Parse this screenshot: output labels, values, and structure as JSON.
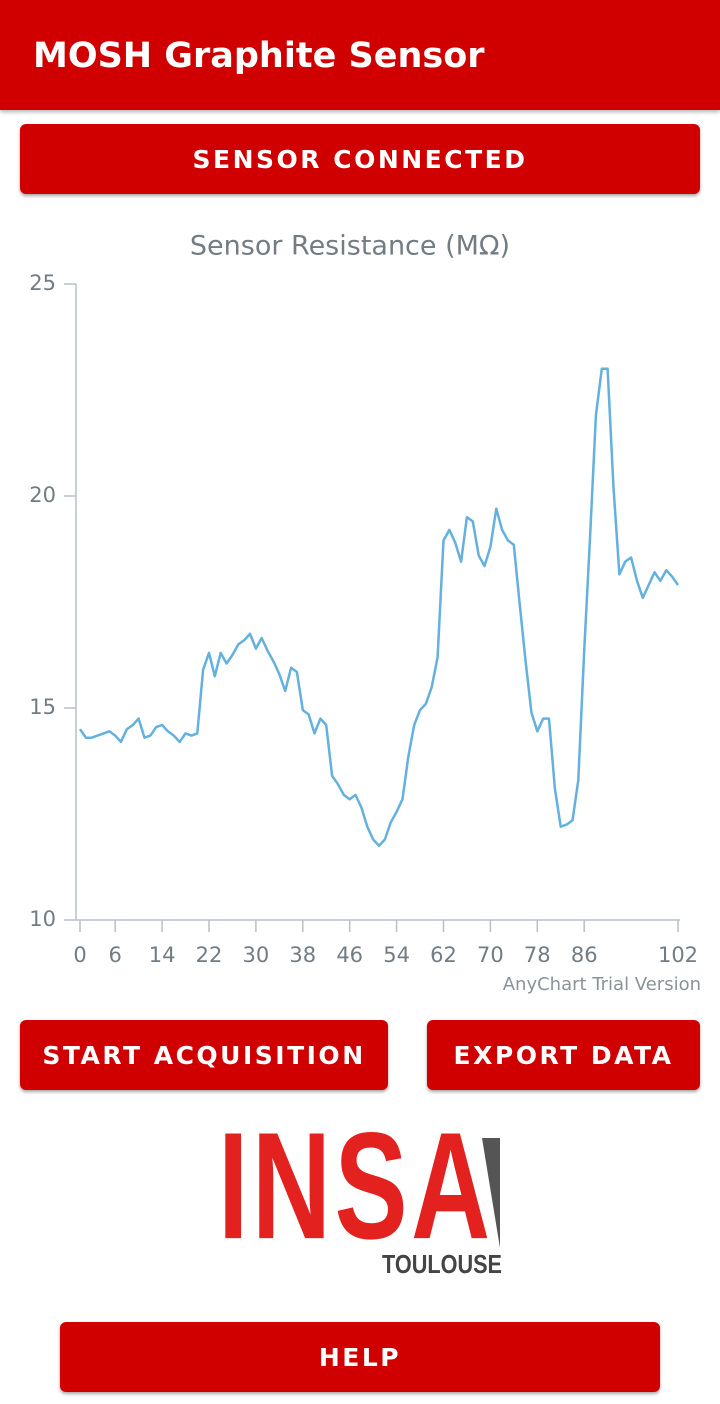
{
  "app_bar": {
    "title": "MOSH Graphite Sensor"
  },
  "status_button": "SENSOR CONNECTED",
  "chart_data": {
    "type": "line",
    "title": "Sensor Resistance (MΩ)",
    "x": [
      0,
      1,
      2,
      3,
      4,
      5,
      6,
      7,
      8,
      9,
      10,
      11,
      12,
      13,
      14,
      15,
      16,
      17,
      18,
      19,
      20,
      21,
      22,
      23,
      24,
      25,
      26,
      27,
      28,
      29,
      30,
      31,
      32,
      33,
      34,
      35,
      36,
      37,
      38,
      39,
      40,
      41,
      42,
      43,
      44,
      45,
      46,
      47,
      48,
      49,
      50,
      51,
      52,
      53,
      54,
      55,
      56,
      57,
      58,
      59,
      60,
      61,
      62,
      63,
      64,
      65,
      66,
      67,
      68,
      69,
      70,
      71,
      72,
      73,
      74,
      75,
      76,
      77,
      78,
      79,
      80,
      81,
      82,
      83,
      84,
      85,
      86,
      87,
      88,
      89,
      90,
      91,
      92,
      93,
      94,
      95,
      96,
      97,
      98,
      99,
      100,
      101,
      102
    ],
    "values": [
      14.5,
      14.3,
      14.3,
      14.35,
      14.4,
      14.45,
      14.35,
      14.2,
      14.5,
      14.6,
      14.75,
      14.3,
      14.35,
      14.55,
      14.6,
      14.45,
      14.35,
      14.2,
      14.4,
      14.35,
      14.4,
      15.9,
      16.3,
      15.75,
      16.3,
      16.05,
      16.25,
      16.5,
      16.6,
      16.75,
      16.4,
      16.65,
      16.35,
      16.1,
      15.8,
      15.4,
      15.95,
      15.85,
      14.95,
      14.85,
      14.4,
      14.75,
      14.6,
      13.4,
      13.2,
      12.95,
      12.85,
      12.95,
      12.65,
      12.2,
      11.9,
      11.75,
      11.9,
      12.3,
      12.55,
      12.85,
      13.85,
      14.6,
      14.95,
      15.1,
      15.5,
      16.2,
      18.95,
      19.2,
      18.9,
      18.45,
      19.5,
      19.4,
      18.6,
      18.35,
      18.8,
      19.7,
      19.2,
      18.95,
      18.85,
      17.45,
      16.1,
      14.9,
      14.45,
      14.75,
      14.75,
      13.1,
      12.2,
      12.25,
      12.35,
      13.3,
      16.35,
      19.05,
      21.9,
      23.0,
      23.0,
      20.2,
      18.15,
      18.45,
      18.55,
      18.0,
      17.6,
      17.9,
      18.2,
      18.0,
      18.25,
      18.1,
      17.9
    ],
    "color": "#64b0de",
    "xlim": [
      0,
      102
    ],
    "xticks": [
      0,
      6,
      14,
      22,
      30,
      38,
      46,
      54,
      62,
      70,
      78,
      86,
      102
    ],
    "ylim": [
      10,
      25
    ],
    "yticks": [
      10,
      15,
      20,
      25
    ]
  },
  "chart_watermark": "AnyChart Trial Version",
  "buttons": {
    "start": "START ACQUISITION",
    "export": "EXPORT DATA",
    "help": "HELP"
  },
  "logo": {
    "name": "INSA",
    "city": "TOULOUSE"
  }
}
